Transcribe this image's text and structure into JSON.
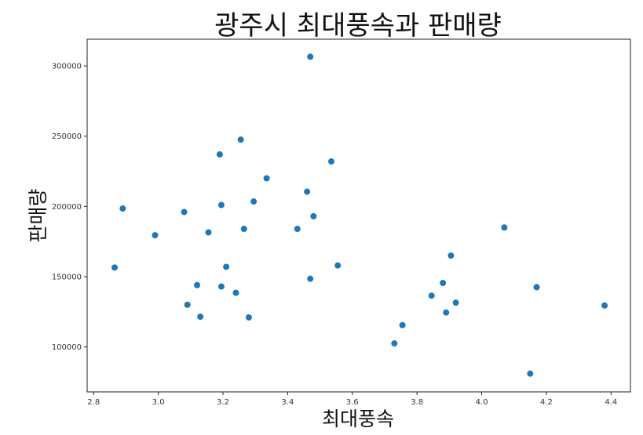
{
  "chart_data": {
    "type": "scatter",
    "title": "광주시 최대풍속과 판매량",
    "xlabel": "최대풍속",
    "ylabel": "판매량",
    "xlim": [
      2.78,
      4.46
    ],
    "ylim": [
      68000,
      319000
    ],
    "x_ticks": [
      {
        "value": 2.8,
        "label": "2.8"
      },
      {
        "value": 3.0,
        "label": "3.0"
      },
      {
        "value": 3.2,
        "label": "3.2"
      },
      {
        "value": 3.4,
        "label": "3.4"
      },
      {
        "value": 3.6,
        "label": "3.6"
      },
      {
        "value": 3.8,
        "label": "3.8"
      },
      {
        "value": 4.0,
        "label": "4.0"
      },
      {
        "value": 4.2,
        "label": "4.2"
      },
      {
        "value": 4.4,
        "label": "4.4"
      }
    ],
    "y_ticks": [
      {
        "value": 100000,
        "label": "100000"
      },
      {
        "value": 150000,
        "label": "150000"
      },
      {
        "value": 200000,
        "label": "200000"
      },
      {
        "value": 250000,
        "label": "250000"
      },
      {
        "value": 300000,
        "label": "300000"
      }
    ],
    "grid": false,
    "color": "#1f77b4",
    "points": [
      {
        "x": 2.865,
        "y": 156500
      },
      {
        "x": 2.89,
        "y": 198500
      },
      {
        "x": 2.99,
        "y": 179500
      },
      {
        "x": 3.08,
        "y": 196000
      },
      {
        "x": 3.09,
        "y": 130000
      },
      {
        "x": 3.12,
        "y": 144000
      },
      {
        "x": 3.13,
        "y": 121500
      },
      {
        "x": 3.155,
        "y": 181500
      },
      {
        "x": 3.19,
        "y": 237000
      },
      {
        "x": 3.195,
        "y": 201000
      },
      {
        "x": 3.195,
        "y": 143000
      },
      {
        "x": 3.21,
        "y": 157000
      },
      {
        "x": 3.24,
        "y": 138500
      },
      {
        "x": 3.255,
        "y": 247500
      },
      {
        "x": 3.265,
        "y": 184000
      },
      {
        "x": 3.28,
        "y": 121000
      },
      {
        "x": 3.295,
        "y": 203500
      },
      {
        "x": 3.335,
        "y": 220000
      },
      {
        "x": 3.43,
        "y": 184000
      },
      {
        "x": 3.46,
        "y": 210500
      },
      {
        "x": 3.47,
        "y": 306500
      },
      {
        "x": 3.47,
        "y": 148500
      },
      {
        "x": 3.48,
        "y": 193000
      },
      {
        "x": 3.535,
        "y": 232000
      },
      {
        "x": 3.555,
        "y": 158000
      },
      {
        "x": 3.73,
        "y": 102500
      },
      {
        "x": 3.755,
        "y": 115500
      },
      {
        "x": 3.845,
        "y": 136500
      },
      {
        "x": 3.88,
        "y": 145500
      },
      {
        "x": 3.89,
        "y": 124500
      },
      {
        "x": 3.905,
        "y": 165000
      },
      {
        "x": 3.92,
        "y": 131500
      },
      {
        "x": 4.07,
        "y": 185000
      },
      {
        "x": 4.15,
        "y": 81000
      },
      {
        "x": 4.17,
        "y": 142500
      },
      {
        "x": 4.38,
        "y": 129500
      }
    ]
  }
}
